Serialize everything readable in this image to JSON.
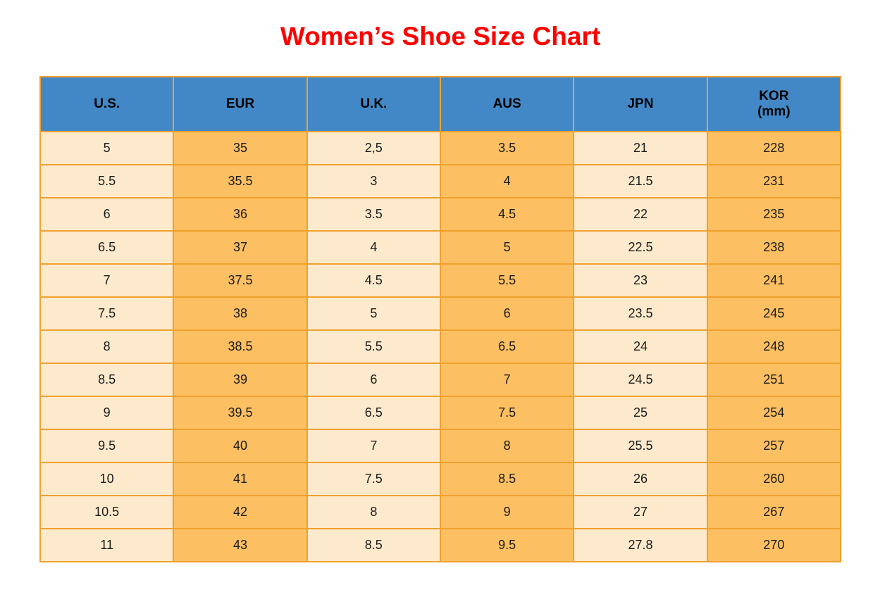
{
  "title": "Women’s Shoe Size Chart",
  "colors": {
    "title_red": "#FF0000",
    "header_blue": "#4288C6",
    "border_orange": "#EFA12E",
    "cell_cream": "#FDEACC",
    "cell_orange": "#FCBF62",
    "text": "#1A1A1A"
  },
  "chart_data": {
    "type": "table",
    "title": "Women’s Shoe Size Chart",
    "columns": [
      {
        "label": "U.S."
      },
      {
        "label": "EUR"
      },
      {
        "label": "U.K."
      },
      {
        "label": "AUS"
      },
      {
        "label": "JPN"
      },
      {
        "label": "KOR",
        "sub": "(mm)"
      }
    ],
    "rows": [
      [
        "5",
        "35",
        "2,5",
        "3.5",
        "21",
        "228"
      ],
      [
        "5.5",
        "35.5",
        "3",
        "4",
        "21.5",
        "231"
      ],
      [
        "6",
        "36",
        "3.5",
        "4.5",
        "22",
        "235"
      ],
      [
        "6.5",
        "37",
        "4",
        "5",
        "22.5",
        "238"
      ],
      [
        "7",
        "37.5",
        "4.5",
        "5.5",
        "23",
        "241"
      ],
      [
        "7.5",
        "38",
        "5",
        "6",
        "23.5",
        "245"
      ],
      [
        "8",
        "38.5",
        "5.5",
        "6.5",
        "24",
        "248"
      ],
      [
        "8.5",
        "39",
        "6",
        "7",
        "24.5",
        "251"
      ],
      [
        "9",
        "39.5",
        "6.5",
        "7.5",
        "25",
        "254"
      ],
      [
        "9.5",
        "40",
        "7",
        "8",
        "25.5",
        "257"
      ],
      [
        "10",
        "41",
        "7.5",
        "8.5",
        "26",
        "260"
      ],
      [
        "10.5",
        "42",
        "8",
        "9",
        "27",
        "267"
      ],
      [
        "11",
        "43",
        "8.5",
        "9.5",
        "27.8",
        "270"
      ]
    ]
  }
}
